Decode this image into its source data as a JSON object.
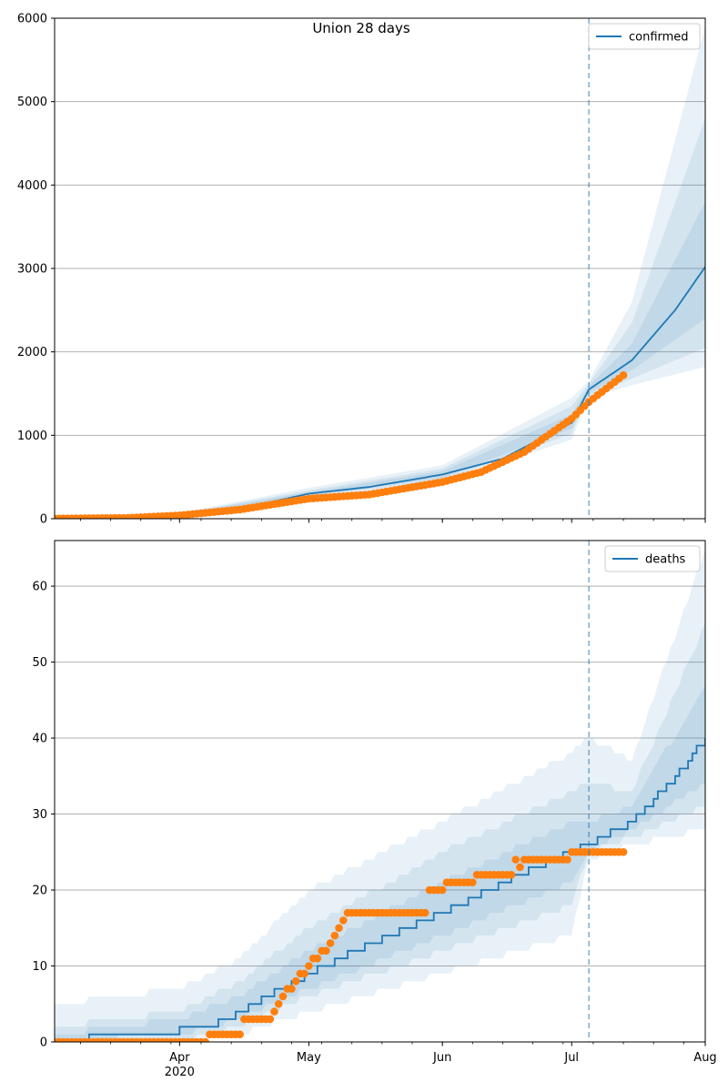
{
  "title": "Union 28 days",
  "colors": {
    "model": "#1f77b4",
    "observed": "#ff7f0e",
    "vline": "#1f77b4",
    "grid": "#b0b0b0"
  },
  "chart_data": [
    {
      "type": "line",
      "legend": "confirmed",
      "legend_position": "top-right",
      "grid": "y",
      "xlim": [
        "2020-03-03",
        "2020-08-01"
      ],
      "ylim": [
        0,
        6000
      ],
      "yticks": [
        0,
        1000,
        2000,
        3000,
        4000,
        5000,
        6000
      ],
      "xticks_major": [
        {
          "date": "2020-04-01",
          "label": "Apr",
          "year": "2020"
        },
        {
          "date": "2020-05-01",
          "label": "May"
        },
        {
          "date": "2020-06-01",
          "label": "Jun"
        },
        {
          "date": "2020-07-01",
          "label": "Jul"
        },
        {
          "date": "2020-08-01",
          "label": "Aug"
        }
      ],
      "forecast_start": "2020-07-05",
      "model_median": [
        [
          "2020-03-03",
          5
        ],
        [
          "2020-03-20",
          15
        ],
        [
          "2020-04-01",
          45
        ],
        [
          "2020-04-15",
          120
        ],
        [
          "2020-05-01",
          300
        ],
        [
          "2020-05-15",
          380
        ],
        [
          "2020-06-01",
          530
        ],
        [
          "2020-06-15",
          720
        ],
        [
          "2020-07-01",
          1150
        ],
        [
          "2020-07-05",
          1550
        ],
        [
          "2020-07-15",
          1900
        ],
        [
          "2020-07-25",
          2500
        ],
        [
          "2020-08-01",
          3020
        ]
      ],
      "bands": [
        {
          "lower": [
            [
              "2020-03-03",
              0
            ],
            [
              "2020-04-01",
              30
            ],
            [
              "2020-05-01",
              240
            ],
            [
              "2020-06-01",
              430
            ],
            [
              "2020-07-01",
              950
            ],
            [
              "2020-07-05",
              1450
            ],
            [
              "2020-07-15",
              1600
            ],
            [
              "2020-08-01",
              1820
            ]
          ],
          "upper": [
            [
              "2020-03-03",
              20
            ],
            [
              "2020-04-01",
              70
            ],
            [
              "2020-05-01",
              370
            ],
            [
              "2020-06-01",
              640
            ],
            [
              "2020-07-01",
              1450
            ],
            [
              "2020-07-05",
              1650
            ],
            [
              "2020-07-15",
              2600
            ],
            [
              "2020-08-01",
              5900
            ]
          ]
        },
        {
          "lower": [
            [
              "2020-03-03",
              0
            ],
            [
              "2020-04-01",
              35
            ],
            [
              "2020-05-01",
              260
            ],
            [
              "2020-06-01",
              460
            ],
            [
              "2020-07-01",
              1020
            ],
            [
              "2020-07-05",
              1480
            ],
            [
              "2020-07-15",
              1680
            ],
            [
              "2020-08-01",
              2050
            ]
          ],
          "upper": [
            [
              "2020-03-03",
              15
            ],
            [
              "2020-04-01",
              60
            ],
            [
              "2020-05-01",
              340
            ],
            [
              "2020-06-01",
              600
            ],
            [
              "2020-07-01",
              1350
            ],
            [
              "2020-07-05",
              1620
            ],
            [
              "2020-07-15",
              2350
            ],
            [
              "2020-08-01",
              4800
            ]
          ]
        },
        {
          "lower": [
            [
              "2020-03-03",
              0
            ],
            [
              "2020-04-01",
              40
            ],
            [
              "2020-05-01",
              280
            ],
            [
              "2020-06-01",
              490
            ],
            [
              "2020-07-01",
              1080
            ],
            [
              "2020-07-05",
              1510
            ],
            [
              "2020-07-15",
              1780
            ],
            [
              "2020-08-01",
              2400
            ]
          ],
          "upper": [
            [
              "2020-03-03",
              10
            ],
            [
              "2020-04-01",
              55
            ],
            [
              "2020-05-01",
              320
            ],
            [
              "2020-06-01",
              570
            ],
            [
              "2020-07-01",
              1250
            ],
            [
              "2020-07-05",
              1590
            ],
            [
              "2020-07-15",
              2100
            ],
            [
              "2020-08-01",
              3800
            ]
          ]
        }
      ],
      "observed_knots": [
        [
          "2020-03-03",
          2
        ],
        [
          "2020-03-20",
          10
        ],
        [
          "2020-04-01",
          40
        ],
        [
          "2020-04-15",
          110
        ],
        [
          "2020-05-01",
          240
        ],
        [
          "2020-05-15",
          290
        ],
        [
          "2020-06-01",
          440
        ],
        [
          "2020-06-10",
          560
        ],
        [
          "2020-06-20",
          800
        ],
        [
          "2020-07-01",
          1200
        ],
        [
          "2020-07-05",
          1400
        ],
        [
          "2020-07-10",
          1600
        ],
        [
          "2020-07-13",
          1720
        ]
      ],
      "observed_range": [
        "2020-03-03",
        "2020-07-13"
      ]
    },
    {
      "type": "line",
      "legend": "deaths",
      "legend_position": "top-right",
      "grid": "y",
      "xlim": [
        "2020-03-03",
        "2020-08-01"
      ],
      "ylim": [
        0,
        66
      ],
      "yticks": [
        0,
        10,
        20,
        30,
        40,
        50,
        60
      ],
      "xticks_major": [
        {
          "date": "2020-04-01",
          "label": "Apr",
          "year": "2020"
        },
        {
          "date": "2020-05-01",
          "label": "May"
        },
        {
          "date": "2020-06-01",
          "label": "Jun"
        },
        {
          "date": "2020-07-01",
          "label": "Jul"
        },
        {
          "date": "2020-08-01",
          "label": "Aug"
        }
      ],
      "forecast_start": "2020-07-05",
      "model_median": [
        [
          "2020-03-03",
          0
        ],
        [
          "2020-03-10",
          0
        ],
        [
          "2020-03-11",
          1
        ],
        [
          "2020-03-31",
          1
        ],
        [
          "2020-04-01",
          2
        ],
        [
          "2020-04-08",
          2
        ],
        [
          "2020-04-15",
          4
        ],
        [
          "2020-05-01",
          9
        ],
        [
          "2020-05-15",
          13
        ],
        [
          "2020-06-01",
          17
        ],
        [
          "2020-06-15",
          21
        ],
        [
          "2020-07-01",
          25
        ],
        [
          "2020-07-05",
          26
        ],
        [
          "2020-07-15",
          29
        ],
        [
          "2020-07-25",
          35
        ],
        [
          "2020-08-01",
          40
        ]
      ],
      "bands": [
        {
          "lower": [
            [
              "2020-03-03",
              0
            ],
            [
              "2020-04-01",
              0
            ],
            [
              "2020-04-15",
              1
            ],
            [
              "2020-05-01",
              4
            ],
            [
              "2020-06-01",
              9
            ],
            [
              "2020-07-01",
              14
            ],
            [
              "2020-07-05",
              24
            ],
            [
              "2020-07-15",
              26
            ],
            [
              "2020-08-01",
              28
            ]
          ],
          "upper": [
            [
              "2020-03-03",
              5
            ],
            [
              "2020-04-01",
              7
            ],
            [
              "2020-04-15",
              11
            ],
            [
              "2020-05-01",
              20
            ],
            [
              "2020-06-01",
              29
            ],
            [
              "2020-07-01",
              38
            ],
            [
              "2020-07-05",
              40
            ],
            [
              "2020-07-15",
              37
            ],
            [
              "2020-08-01",
              65
            ]
          ]
        },
        {
          "lower": [
            [
              "2020-03-03",
              0
            ],
            [
              "2020-04-01",
              0
            ],
            [
              "2020-04-15",
              2
            ],
            [
              "2020-05-01",
              6
            ],
            [
              "2020-06-01",
              12
            ],
            [
              "2020-07-01",
              18
            ],
            [
              "2020-07-05",
              25
            ],
            [
              "2020-07-15",
              27
            ],
            [
              "2020-08-01",
              31
            ]
          ],
          "upper": [
            [
              "2020-03-03",
              2
            ],
            [
              "2020-04-01",
              4
            ],
            [
              "2020-04-15",
              8
            ],
            [
              "2020-05-01",
              15
            ],
            [
              "2020-06-01",
              25
            ],
            [
              "2020-07-01",
              33
            ],
            [
              "2020-07-05",
              34
            ],
            [
              "2020-07-15",
              33
            ],
            [
              "2020-08-01",
              55
            ]
          ]
        },
        {
          "lower": [
            [
              "2020-03-03",
              0
            ],
            [
              "2020-04-01",
              1
            ],
            [
              "2020-04-15",
              3
            ],
            [
              "2020-05-01",
              7
            ],
            [
              "2020-06-01",
              14
            ],
            [
              "2020-07-01",
              21
            ],
            [
              "2020-07-05",
              25
            ],
            [
              "2020-07-15",
              28
            ],
            [
              "2020-08-01",
              34
            ]
          ],
          "upper": [
            [
              "2020-03-03",
              1
            ],
            [
              "2020-04-01",
              3
            ],
            [
              "2020-04-15",
              6
            ],
            [
              "2020-05-01",
              12
            ],
            [
              "2020-06-01",
              21
            ],
            [
              "2020-07-01",
              29
            ],
            [
              "2020-07-05",
              29
            ],
            [
              "2020-07-15",
              31
            ],
            [
              "2020-08-01",
              47
            ]
          ]
        }
      ],
      "observed_knots": [
        [
          "2020-03-03",
          0
        ],
        [
          "2020-04-07",
          0
        ],
        [
          "2020-04-08",
          1
        ],
        [
          "2020-04-15",
          1
        ],
        [
          "2020-04-16",
          3
        ],
        [
          "2020-04-22",
          3
        ],
        [
          "2020-04-25",
          6
        ],
        [
          "2020-05-01",
          10
        ],
        [
          "2020-05-05",
          12
        ],
        [
          "2020-05-08",
          15
        ],
        [
          "2020-05-10",
          17
        ],
        [
          "2020-05-28",
          17
        ],
        [
          "2020-05-29",
          20
        ],
        [
          "2020-06-01",
          20
        ],
        [
          "2020-06-02",
          21
        ],
        [
          "2020-06-08",
          21
        ],
        [
          "2020-06-09",
          22
        ],
        [
          "2020-06-17",
          22
        ],
        [
          "2020-06-18",
          24
        ],
        [
          "2020-06-19",
          23
        ],
        [
          "2020-06-21",
          24
        ],
        [
          "2020-06-30",
          24
        ],
        [
          "2020-07-01",
          25
        ],
        [
          "2020-07-13",
          25
        ]
      ],
      "observed_range": [
        "2020-03-03",
        "2020-07-13"
      ]
    }
  ]
}
